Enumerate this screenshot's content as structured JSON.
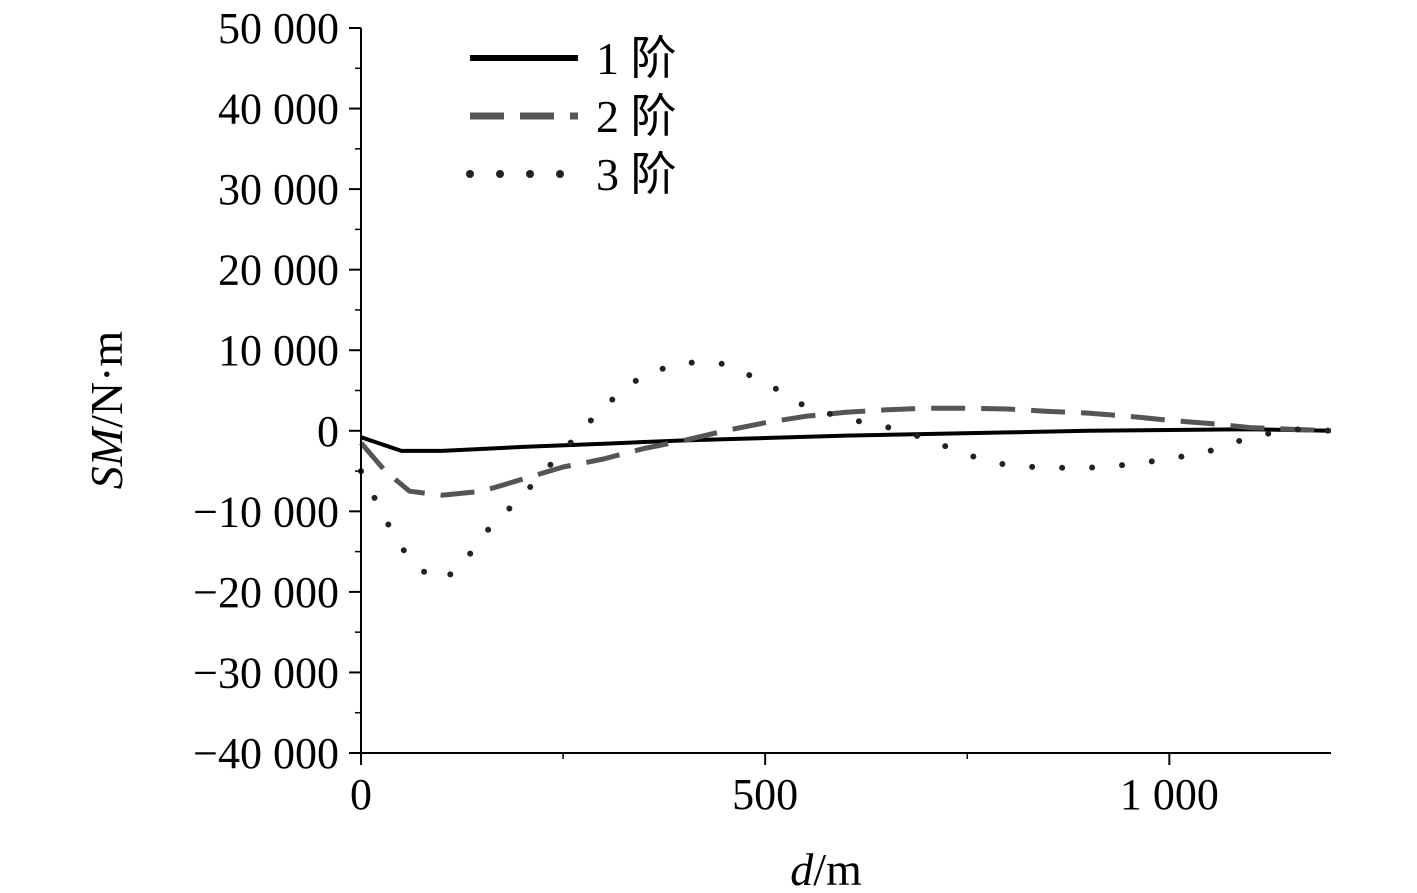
{
  "chart_data": {
    "type": "line",
    "xlabel": {
      "italic": "d",
      "unit": "/m"
    },
    "ylabel": {
      "italic": "SM",
      "unit": "/N·m"
    },
    "xlim": [
      0,
      1200
    ],
    "ylim": [
      -40000,
      50000
    ],
    "x_ticks": [
      0,
      500,
      1000
    ],
    "x_tick_labels": [
      "0",
      "500",
      "1 000"
    ],
    "y_ticks": [
      50000,
      40000,
      30000,
      20000,
      10000,
      0,
      -10000,
      -20000,
      -30000,
      -40000
    ],
    "y_tick_labels": [
      "50 000",
      "40 000",
      "30 000",
      "20 000",
      "10 000",
      "0",
      "−10 000",
      "−20 000",
      "−30 000",
      "−40 000"
    ],
    "grid": false,
    "legend_position": "top-left",
    "series": [
      {
        "name": "1 阶",
        "style": "solid",
        "color": "#000000",
        "x": [
          0,
          50,
          100,
          200,
          300,
          400,
          500,
          600,
          700,
          800,
          900,
          1000,
          1100,
          1200
        ],
        "y": [
          -800,
          -2500,
          -2500,
          -2000,
          -1600,
          -1200,
          -900,
          -600,
          -400,
          -200,
          0,
          100,
          200,
          0
        ]
      },
      {
        "name": "2 阶",
        "style": "dashed",
        "color": "#555555",
        "x": [
          0,
          30,
          60,
          100,
          150,
          200,
          250,
          300,
          350,
          400,
          450,
          500,
          550,
          600,
          650,
          700,
          750,
          800,
          850,
          900,
          950,
          1000,
          1050,
          1100,
          1150,
          1200
        ],
        "y": [
          -1500,
          -5000,
          -7500,
          -8000,
          -7500,
          -6000,
          -4500,
          -3500,
          -2200,
          -1200,
          0,
          1000,
          1800,
          2300,
          2600,
          2800,
          2800,
          2700,
          2400,
          2200,
          1800,
          1300,
          900,
          400,
          200,
          0
        ]
      },
      {
        "name": "3 阶",
        "style": "dotted",
        "color": "#222222",
        "x": [
          0,
          30,
          60,
          90,
          120,
          150,
          200,
          250,
          300,
          350,
          400,
          450,
          500,
          550,
          600,
          650,
          700,
          750,
          800,
          850,
          900,
          950,
          1000,
          1050,
          1100,
          1150,
          1200
        ],
        "y": [
          -5000,
          -11000,
          -16000,
          -18500,
          -17500,
          -13000,
          -8000,
          -2500,
          3000,
          7000,
          8500,
          8300,
          6000,
          3000,
          1500,
          500,
          -1000,
          -3000,
          -4300,
          -4600,
          -4600,
          -4200,
          -3500,
          -2500,
          -800,
          200,
          0
        ]
      }
    ]
  }
}
